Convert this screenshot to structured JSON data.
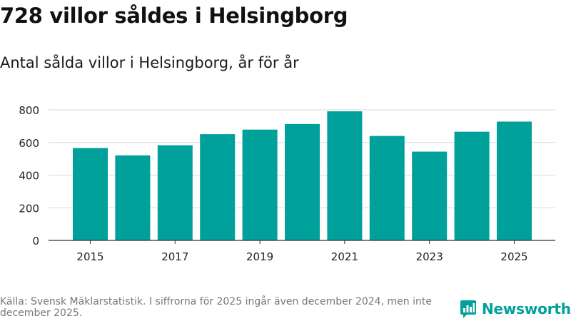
{
  "title": "728 villor såldes i Helsingborg",
  "subtitle": "Antal sålda villor i Helsingborg, år för år",
  "source": "Källa: Svensk Mäklarstatistik. I siffrorna för 2025 ingår även december 2024, men inte december 2025.",
  "brand": {
    "name": "Newsworthy",
    "icon": "newsworthy-logo-icon"
  },
  "colors": {
    "bar": "#00a19a",
    "brand": "#00a19a",
    "grid": "#d9d9d9",
    "axis": "#333333",
    "tick": "#222222"
  },
  "chart_data": {
    "type": "bar",
    "title": "728 villor såldes i Helsingborg",
    "subtitle": "Antal sålda villor i Helsingborg, år för år",
    "xlabel": "",
    "ylabel": "",
    "categories": [
      "2015",
      "2016",
      "2017",
      "2018",
      "2019",
      "2020",
      "2021",
      "2022",
      "2023",
      "2024",
      "2025"
    ],
    "x_tick_labels": [
      "2015",
      "",
      "2017",
      "",
      "2019",
      "",
      "2021",
      "",
      "2023",
      "",
      "2025"
    ],
    "values": [
      566,
      521,
      583,
      651,
      679,
      713,
      791,
      640,
      544,
      666,
      728
    ],
    "ylim": [
      0,
      800
    ],
    "yticks": [
      0,
      200,
      400,
      600,
      800
    ],
    "grid": true,
    "legend": "none"
  }
}
